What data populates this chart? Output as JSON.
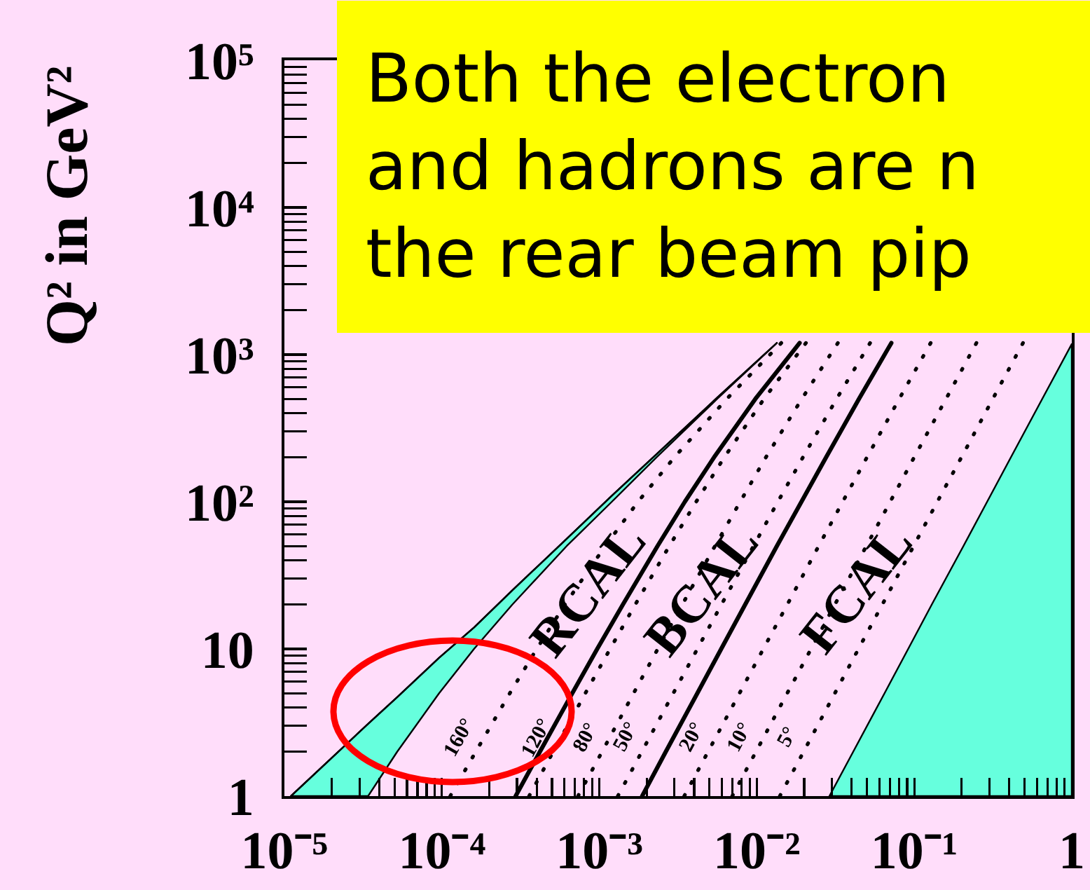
{
  "chart_data": {
    "type": "line",
    "log": "xy",
    "xlim": [
      1e-05,
      1
    ],
    "ylim": [
      1,
      100000
    ],
    "xticks": [
      {
        "value": 1e-05,
        "label": "10⁻⁵"
      },
      {
        "value": 2e-05,
        "label": null
      },
      {
        "value": 3e-05,
        "label": null
      },
      {
        "value": 4e-05,
        "label": null
      },
      {
        "value": 5e-05,
        "label": null
      },
      {
        "value": 6e-05,
        "label": null
      },
      {
        "value": 7e-05,
        "label": null
      },
      {
        "value": 8e-05,
        "label": null
      },
      {
        "value": 9e-05,
        "label": null
      },
      {
        "value": 0.0001,
        "label": "10⁻⁴"
      },
      {
        "value": 0.0002,
        "label": null
      },
      {
        "value": 0.0003,
        "label": null
      },
      {
        "value": 0.0004,
        "label": null
      },
      {
        "value": 0.0005,
        "label": null
      },
      {
        "value": 0.0006,
        "label": null
      },
      {
        "value": 0.0007,
        "label": null
      },
      {
        "value": 0.0008,
        "label": null
      },
      {
        "value": 0.0009,
        "label": null
      },
      {
        "value": 0.001,
        "label": "10⁻³"
      },
      {
        "value": 0.002,
        "label": null
      },
      {
        "value": 0.003,
        "label": null
      },
      {
        "value": 0.004,
        "label": null
      },
      {
        "value": 0.005,
        "label": null
      },
      {
        "value": 0.006,
        "label": null
      },
      {
        "value": 0.007,
        "label": null
      },
      {
        "value": 0.008,
        "label": null
      },
      {
        "value": 0.009,
        "label": null
      },
      {
        "value": 0.01,
        "label": "10⁻²"
      },
      {
        "value": 0.02,
        "label": null
      },
      {
        "value": 0.03,
        "label": null
      },
      {
        "value": 0.04,
        "label": null
      },
      {
        "value": 0.05,
        "label": null
      },
      {
        "value": 0.06,
        "label": null
      },
      {
        "value": 0.07,
        "label": null
      },
      {
        "value": 0.08,
        "label": null
      },
      {
        "value": 0.09,
        "label": null
      },
      {
        "value": 0.1,
        "label": "10⁻¹"
      },
      {
        "value": 0.2,
        "label": null
      },
      {
        "value": 0.3,
        "label": null
      },
      {
        "value": 0.4,
        "label": null
      },
      {
        "value": 0.5,
        "label": null
      },
      {
        "value": 0.6,
        "label": null
      },
      {
        "value": 0.7,
        "label": null
      },
      {
        "value": 0.8,
        "label": null
      },
      {
        "value": 0.9,
        "label": null
      },
      1
    ],
    "yticks": [
      1,
      {
        "value": 2,
        "label": null
      },
      {
        "value": 3,
        "label": null
      },
      {
        "value": 4,
        "label": null
      },
      {
        "value": 5,
        "label": null
      },
      {
        "value": 6,
        "label": null
      },
      {
        "value": 7,
        "label": null
      },
      {
        "value": 8,
        "label": null
      },
      {
        "value": 9,
        "label": null
      },
      10,
      {
        "value": 20,
        "label": null
      },
      {
        "value": 30,
        "label": null
      },
      {
        "value": 40,
        "label": null
      },
      {
        "value": 50,
        "label": null
      },
      {
        "value": 60,
        "label": null
      },
      {
        "value": 70,
        "label": null
      },
      {
        "value": 80,
        "label": null
      },
      {
        "value": 90,
        "label": null
      },
      {
        "value": 100,
        "label": "10²"
      },
      {
        "value": 200,
        "label": null
      },
      {
        "value": 300,
        "label": null
      },
      {
        "value": 400,
        "label": null
      },
      {
        "value": 500,
        "label": null
      },
      {
        "value": 600,
        "label": null
      },
      {
        "value": 700,
        "label": null
      },
      {
        "value": 800,
        "label": null
      },
      {
        "value": 900,
        "label": null
      },
      {
        "value": 1000,
        "label": "10³"
      },
      {
        "value": 2000,
        "label": null
      },
      {
        "value": 3000,
        "label": null
      },
      {
        "value": 4000,
        "label": null
      },
      {
        "value": 5000,
        "label": null
      },
      {
        "value": 6000,
        "label": null
      },
      {
        "value": 7000,
        "label": null
      },
      {
        "value": 8000,
        "label": null
      },
      {
        "value": 9000,
        "label": null
      },
      {
        "value": 10000,
        "label": "10⁴"
      },
      {
        "value": 20000,
        "label": null
      },
      {
        "value": 30000,
        "label": null
      },
      {
        "value": 40000,
        "label": null
      },
      {
        "value": 50000,
        "label": null
      },
      {
        "value": 60000,
        "label": null
      },
      {
        "value": 70000,
        "label": null
      },
      {
        "value": 80000,
        "label": null
      },
      {
        "value": 90000,
        "label": null
      },
      {
        "value": 100000,
        "label": "10⁵"
      }
    ],
    "ylabel": "Q² in GeV²",
    "annotations": [
      "Both the electron\nand hadrons are n\nthe rear beam pip",
      "RCAL",
      "BCAL",
      "FCAL"
    ],
    "series": [
      {
        "color": "#000000",
        "x": [
          1.1e-05,
          3.4e-05,
          5.2e-05,
          9.6e-05,
          0.00016,
          0.00028,
          0.00062,
          0.0012,
          0.0023,
          0.0056,
          0.0134
        ],
        "values": [
          1,
          3.1,
          4.7,
          8.7,
          14,
          25,
          56,
          110,
          210,
          510,
          1200
        ],
        "lower": [
          1,
          1,
          2,
          5,
          10,
          20,
          50,
          100,
          200,
          500,
          1200
        ],
        "upper": [
          1,
          3.1,
          4.7,
          8.7,
          14,
          25,
          56,
          110,
          210,
          510,
          1200
        ]
      },
      {
        "type": "area",
        "color": "#66ffdd",
        "x": [
          0.0289,
          0.0409,
          0.0647,
          0.0914,
          0.129,
          0.205,
          0.29,
          0.41,
          0.649,
          1
        ],
        "values": [
          1,
          2,
          5,
          10,
          20,
          50,
          100,
          200,
          500,
          1180
        ]
      },
      {
        "color": "#000000",
        "line_style": "solid",
        "x": [
          0.000294,
          0.000419,
          0.000673,
          0.000969,
          0.00141,
          0.00234,
          0.00349,
          0.00534,
          0.00979,
          0.0187
        ],
        "values": [
          1,
          2,
          5,
          10,
          20,
          50,
          100,
          200,
          500,
          1200
        ]
      },
      {
        "color": "#000000",
        "line_style": "solid",
        "x": [
          0.00187,
          0.00264,
          0.00419,
          0.00594,
          0.00843,
          0.0134,
          0.0192,
          0.0275,
          0.0445,
          0.0715
        ],
        "values": [
          1,
          2,
          5,
          10,
          20,
          50,
          100,
          200,
          500,
          1200
        ]
      },
      {
        "name": "160°",
        "color": "#000000",
        "line_style": "dotted",
        "x": [
          0.000113,
          0.000164,
          0.00027,
          0.0004,
          0.000604,
          0.00109,
          0.00176,
          0.00299,
          0.00644,
          0.0143
        ],
        "values": [
          1,
          2,
          5,
          10,
          20,
          50,
          100,
          200,
          500,
          1200
        ]
      },
      {
        "name": "120°",
        "color": "#000000",
        "line_style": "dotted",
        "x": [
          0.000358,
          0.000509,
          0.000815,
          0.00117,
          0.00169,
          0.00278,
          0.00412,
          0.00621,
          0.0111,
          0.0205
        ],
        "values": [
          1,
          2,
          5,
          10,
          20,
          50,
          100,
          200,
          500,
          1200
        ]
      },
      {
        "name": "80°",
        "color": "#000000",
        "line_style": "dotted",
        "x": [
          0.000732,
          0.00104,
          0.00165,
          0.00235,
          0.00336,
          0.00542,
          0.00784,
          0.0114,
          0.0193,
          0.0327
        ],
        "values": [
          1,
          2,
          5,
          10,
          20,
          50,
          100,
          200,
          500,
          1200
        ]
      },
      {
        "name": "50°",
        "color": "#000000",
        "line_style": "dotted",
        "x": [
          0.00131,
          0.00186,
          0.00295,
          0.00419,
          0.00596,
          0.00953,
          0.0136,
          0.0196,
          0.0321,
          0.0524
        ],
        "values": [
          1,
          2,
          5,
          10,
          20,
          50,
          100,
          200,
          500,
          1200
        ]
      },
      {
        "name": "20°",
        "color": "#000000",
        "line_style": "dotted",
        "x": [
          0.00346,
          0.0049,
          0.00776,
          0.011,
          0.0156,
          0.0247,
          0.0351,
          0.05,
          0.0802,
          0.127
        ],
        "values": [
          1,
          2,
          5,
          10,
          20,
          50,
          100,
          200,
          500,
          1200
        ]
      },
      {
        "name": "10°",
        "color": "#000000",
        "line_style": "dotted",
        "x": [
          0.00698,
          0.00987,
          0.0156,
          0.0221,
          0.0313,
          0.0496,
          0.0703,
          0.0997,
          0.159,
          0.248
        ],
        "values": [
          1,
          2,
          5,
          10,
          20,
          50,
          100,
          200,
          500,
          1200
        ]
      },
      {
        "name": "5°",
        "color": "#000000",
        "line_style": "dotted",
        "x": [
          0.014,
          0.0198,
          0.0313,
          0.0442,
          0.0626,
          0.099,
          0.14,
          0.199,
          0.315,
          0.49
        ],
        "values": [
          1,
          2,
          5,
          10,
          20,
          50,
          100,
          200,
          500,
          1200
        ]
      }
    ]
  }
}
